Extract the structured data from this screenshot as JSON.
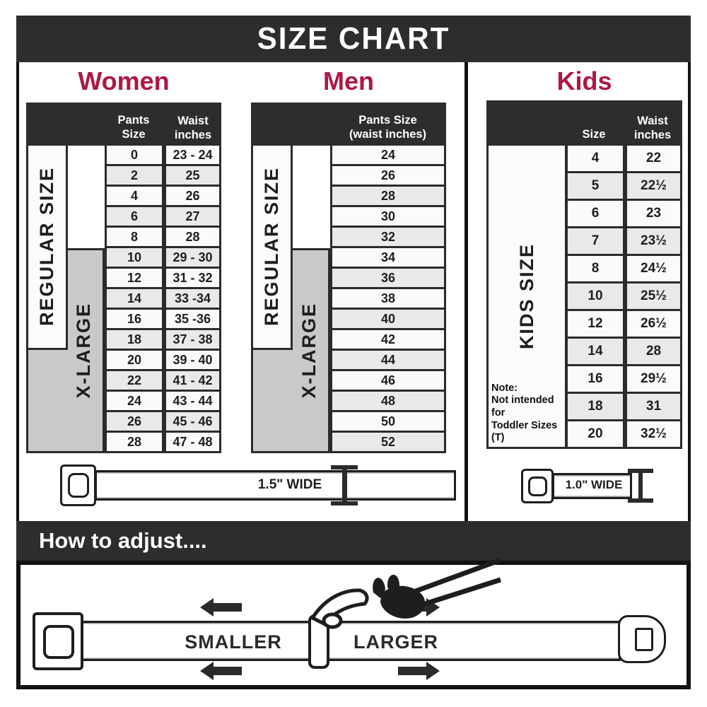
{
  "title": "SIZE CHART",
  "colors": {
    "accent": "#ad1843",
    "header_dark": "#2d2d2d",
    "line_art": "#1e1e1e",
    "row_alt": "#e9e9e9",
    "xlarge_bg": "#c9c9c9"
  },
  "shared": {
    "regular_label": "REGULAR SIZE",
    "xlarge_label": "X-LARGE"
  },
  "women": {
    "heading": "Women",
    "pants_header": "Pants Size",
    "waist_header": "Waist inches",
    "rows": [
      {
        "size": "0",
        "waist": "23 - 24"
      },
      {
        "size": "2",
        "waist": "25"
      },
      {
        "size": "4",
        "waist": "26"
      },
      {
        "size": "6",
        "waist": "27"
      },
      {
        "size": "8",
        "waist": "28"
      },
      {
        "size": "10",
        "waist": "29 - 30"
      },
      {
        "size": "12",
        "waist": "31 - 32"
      },
      {
        "size": "14",
        "waist": "33 -34"
      },
      {
        "size": "16",
        "waist": "35 -36"
      },
      {
        "size": "18",
        "waist": "37 - 38"
      },
      {
        "size": "20",
        "waist": "39 - 40"
      },
      {
        "size": "22",
        "waist": "41 - 42"
      },
      {
        "size": "24",
        "waist": "43 - 44"
      },
      {
        "size": "26",
        "waist": "45 - 46"
      },
      {
        "size": "28",
        "waist": "47 - 48"
      }
    ]
  },
  "men": {
    "heading": "Men",
    "header_lines": [
      "Pants Size",
      "(waist inches)"
    ],
    "rows": [
      "24",
      "26",
      "28",
      "30",
      "32",
      "34",
      "36",
      "38",
      "40",
      "42",
      "44",
      "46",
      "48",
      "50",
      "52"
    ]
  },
  "kids": {
    "heading": "Kids",
    "size_header": "Size",
    "waist_header": "Waist inches",
    "label": "KIDS SIZE",
    "note_lines": [
      "Note:",
      "Not intended for",
      "Toddler Sizes (T)"
    ],
    "rows": [
      {
        "size": "4",
        "waist": "22"
      },
      {
        "size": "5",
        "waist": "22½"
      },
      {
        "size": "6",
        "waist": "23"
      },
      {
        "size": "7",
        "waist": "23½"
      },
      {
        "size": "8",
        "waist": "24½"
      },
      {
        "size": "10",
        "waist": "25½"
      },
      {
        "size": "12",
        "waist": "26½"
      },
      {
        "size": "14",
        "waist": "28"
      },
      {
        "size": "16",
        "waist": "29½"
      },
      {
        "size": "18",
        "waist": "31"
      },
      {
        "size": "20",
        "waist": "32½"
      }
    ]
  },
  "belts": {
    "adult_label": "1.5\" WIDE",
    "kids_label": "1.0\" WIDE"
  },
  "adjust": {
    "heading": "How to adjust....",
    "smaller": "SMALLER",
    "larger": "LARGER"
  }
}
